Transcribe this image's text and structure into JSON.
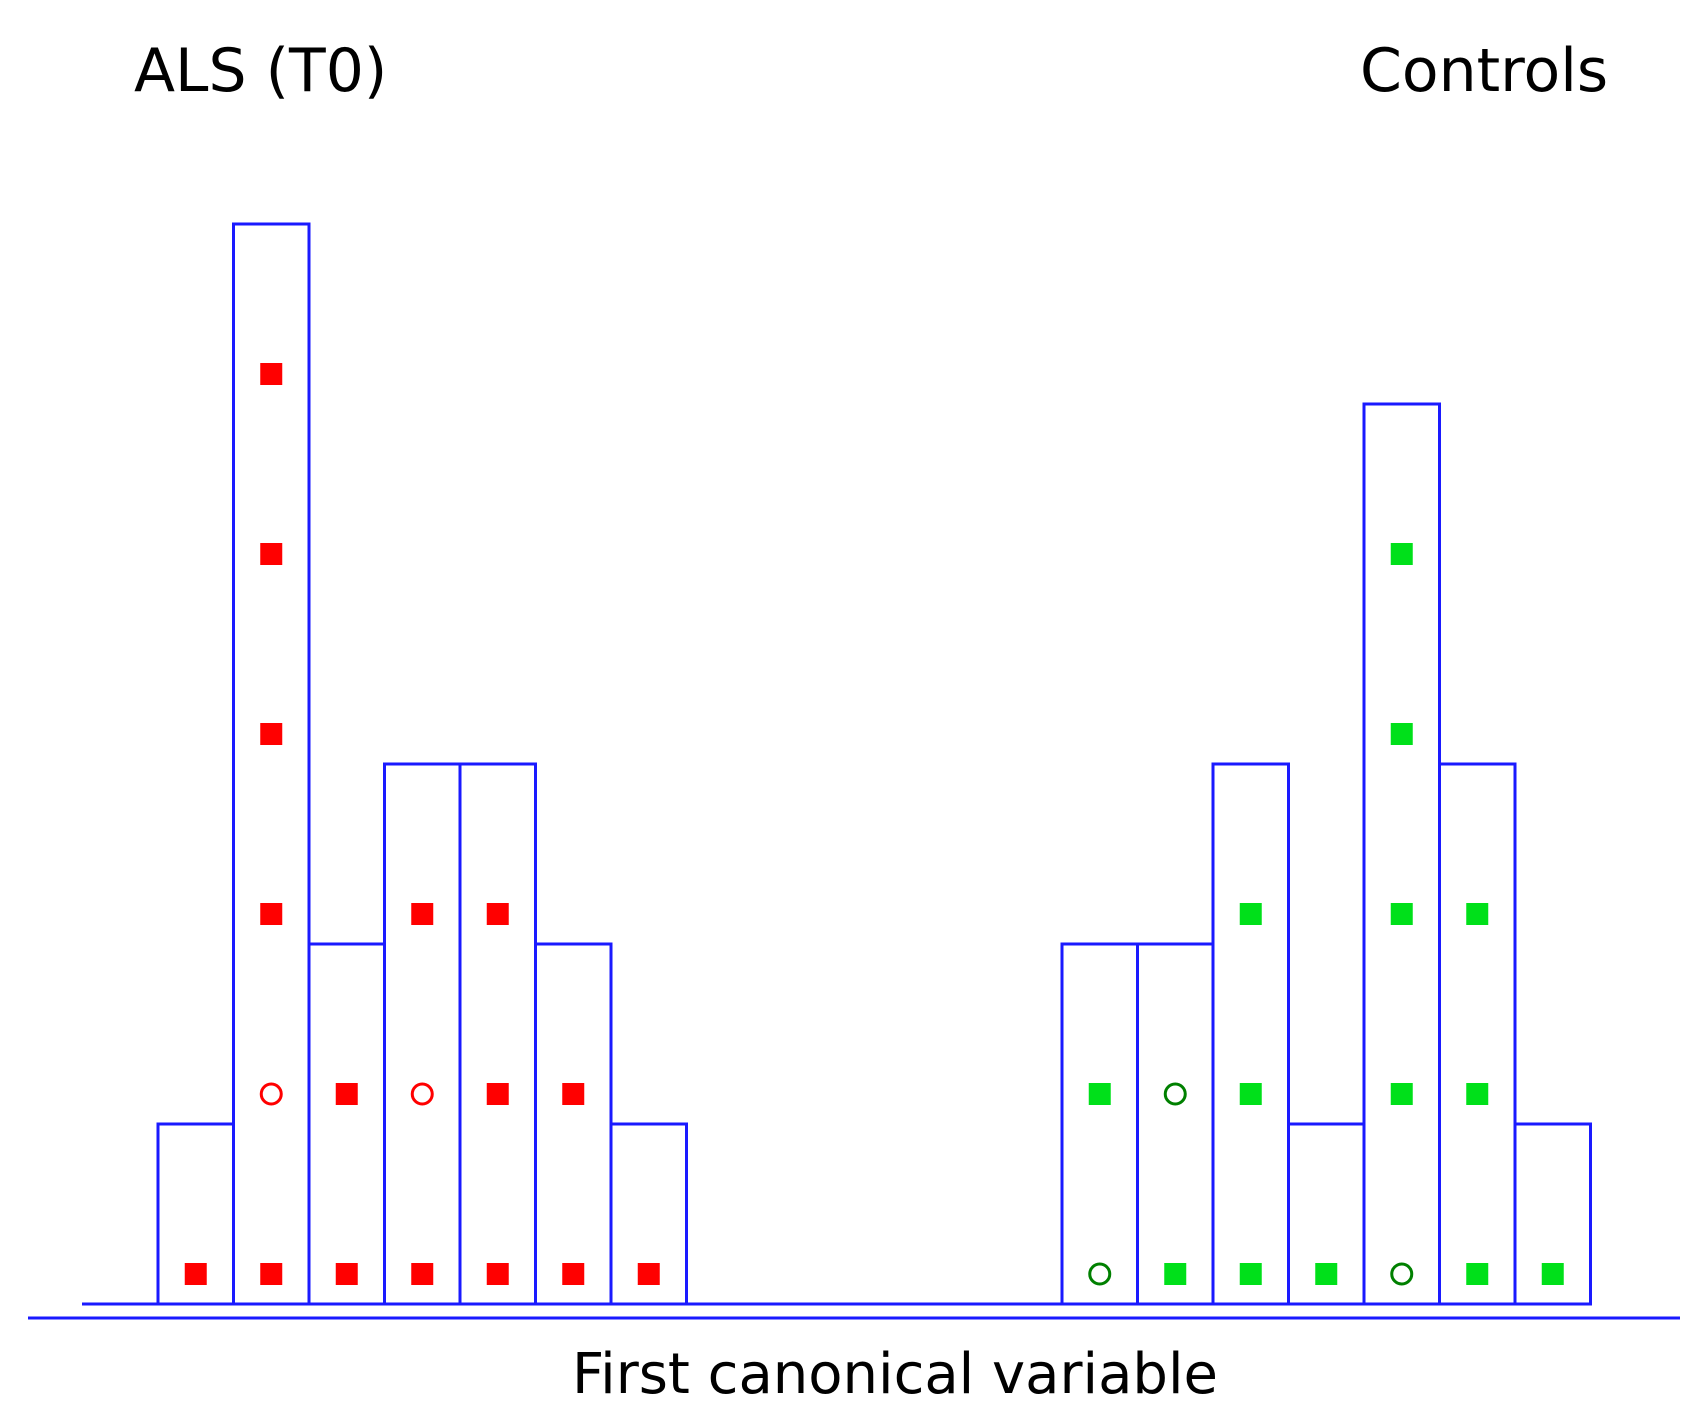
{
  "chart_data": {
    "type": "bar",
    "title": "",
    "xlabel": "First canonical variable",
    "ylabel": "",
    "grid": false,
    "ylim": [
      0,
      6
    ],
    "colors": {
      "outline": "#1a1aff",
      "als": "#ff0000",
      "controls": "#00e01a",
      "controls_open": "#008000"
    },
    "groups": [
      {
        "name": "ALS (T0)",
        "color_key": "als",
        "bins": [
          {
            "count": 1,
            "markers": [
              "filled"
            ]
          },
          {
            "count": 6,
            "markers": [
              "filled",
              "open",
              "filled",
              "filled",
              "filled",
              "filled"
            ]
          },
          {
            "count": 2,
            "markers": [
              "filled",
              "filled"
            ]
          },
          {
            "count": 3,
            "markers": [
              "filled",
              "open",
              "filled"
            ]
          },
          {
            "count": 3,
            "markers": [
              "filled",
              "filled",
              "filled"
            ]
          },
          {
            "count": 2,
            "markers": [
              "filled",
              "filled"
            ]
          },
          {
            "count": 1,
            "markers": [
              "filled"
            ]
          }
        ]
      },
      {
        "name": "Controls",
        "color_key": "controls",
        "bins": [
          {
            "count": 2,
            "markers": [
              "open",
              "filled"
            ]
          },
          {
            "count": 2,
            "markers": [
              "filled",
              "open"
            ]
          },
          {
            "count": 3,
            "markers": [
              "filled",
              "filled",
              "filled"
            ]
          },
          {
            "count": 1,
            "markers": [
              "filled"
            ]
          },
          {
            "count": 5,
            "markers": [
              "open",
              "filled",
              "filled",
              "filled",
              "filled"
            ]
          },
          {
            "count": 3,
            "markers": [
              "filled",
              "filled",
              "filled"
            ]
          },
          {
            "count": 1,
            "markers": [
              "filled"
            ]
          }
        ]
      }
    ]
  }
}
